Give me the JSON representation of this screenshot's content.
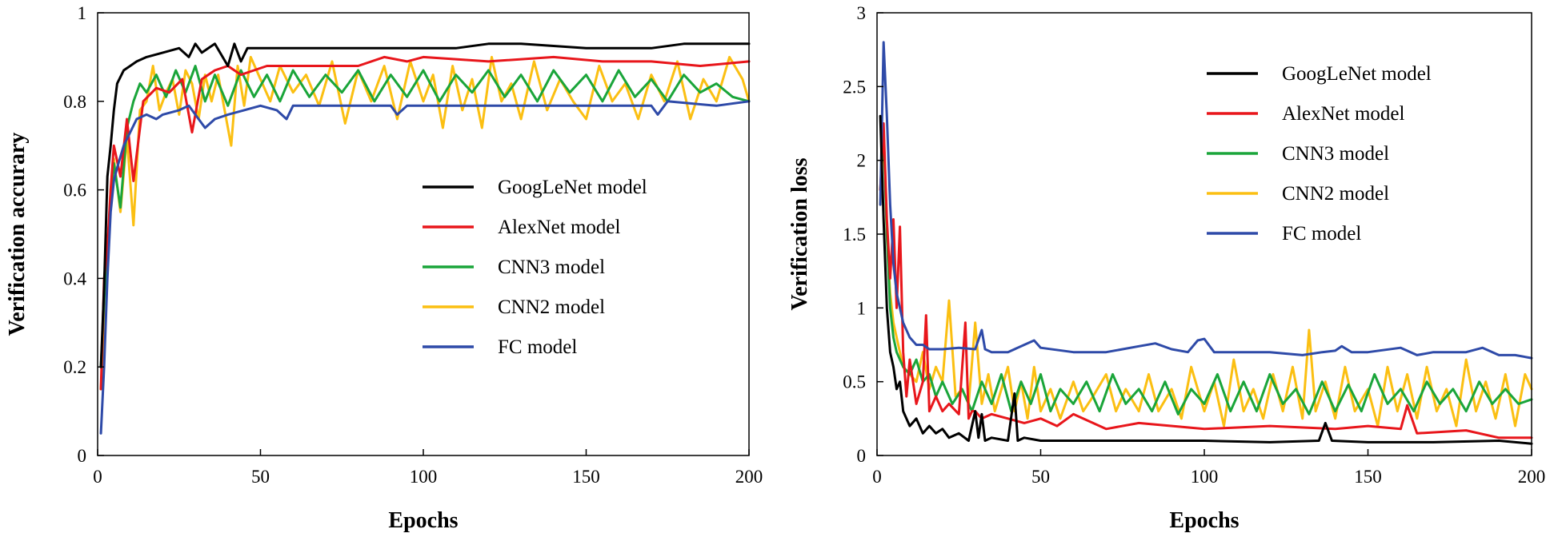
{
  "colors": {
    "GoogLeNet model": "#000000",
    "AlexNet model": "#e8161b",
    "CNN3 model": "#1aa53a",
    "CNN2 model": "#fbbf12",
    "FC model": "#2e4aa8"
  },
  "chart_data": [
    {
      "id": "accuracy",
      "type": "line",
      "xlabel": "Epochs",
      "ylabel": "Verification accurary",
      "xlim": [
        0,
        200
      ],
      "ylim": [
        0,
        1
      ],
      "xticks": [
        0,
        50,
        100,
        150,
        200
      ],
      "yticks": [
        0,
        0.2,
        0.4,
        0.6,
        0.8,
        1
      ],
      "ytick_labels": [
        "0",
        "0.2",
        "0.4",
        "0.6",
        "0.8",
        "1"
      ],
      "legend_loc": "center-right",
      "series": [
        {
          "name": "GoogLeNet model",
          "x": [
            1,
            2,
            3,
            4,
            5,
            6,
            8,
            10,
            12,
            15,
            20,
            25,
            28,
            30,
            32,
            34,
            36,
            40,
            42,
            44,
            46,
            50,
            60,
            80,
            100,
            110,
            120,
            130,
            150,
            170,
            180,
            200
          ],
          "y": [
            0.2,
            0.38,
            0.63,
            0.7,
            0.78,
            0.84,
            0.87,
            0.88,
            0.89,
            0.9,
            0.91,
            0.92,
            0.9,
            0.93,
            0.91,
            0.92,
            0.93,
            0.88,
            0.93,
            0.89,
            0.92,
            0.92,
            0.92,
            0.92,
            0.92,
            0.92,
            0.93,
            0.93,
            0.92,
            0.92,
            0.93,
            0.93
          ]
        },
        {
          "name": "AlexNet model",
          "x": [
            1,
            2,
            3,
            4,
            5,
            7,
            9,
            11,
            14,
            18,
            22,
            26,
            29,
            32,
            36,
            40,
            44,
            48,
            52,
            60,
            70,
            80,
            88,
            95,
            100,
            120,
            140,
            155,
            170,
            185,
            200
          ],
          "y": [
            0.15,
            0.4,
            0.47,
            0.6,
            0.7,
            0.63,
            0.76,
            0.62,
            0.8,
            0.83,
            0.82,
            0.85,
            0.73,
            0.85,
            0.87,
            0.88,
            0.86,
            0.87,
            0.88,
            0.88,
            0.88,
            0.88,
            0.9,
            0.89,
            0.9,
            0.89,
            0.9,
            0.89,
            0.89,
            0.88,
            0.89
          ]
        },
        {
          "name": "CNN3 model",
          "x": [
            1,
            2,
            3,
            4,
            5,
            7,
            9,
            11,
            13,
            15,
            18,
            21,
            24,
            27,
            30,
            33,
            36,
            40,
            44,
            48,
            52,
            56,
            60,
            65,
            70,
            75,
            80,
            85,
            90,
            95,
            100,
            105,
            110,
            115,
            120,
            125,
            130,
            135,
            140,
            145,
            150,
            155,
            160,
            165,
            170,
            175,
            180,
            185,
            190,
            195,
            200
          ],
          "y": [
            0.2,
            0.35,
            0.47,
            0.58,
            0.66,
            0.56,
            0.74,
            0.8,
            0.84,
            0.82,
            0.86,
            0.81,
            0.87,
            0.82,
            0.88,
            0.8,
            0.86,
            0.79,
            0.87,
            0.81,
            0.86,
            0.8,
            0.87,
            0.81,
            0.86,
            0.82,
            0.87,
            0.8,
            0.86,
            0.81,
            0.87,
            0.8,
            0.86,
            0.82,
            0.87,
            0.81,
            0.86,
            0.8,
            0.87,
            0.82,
            0.86,
            0.8,
            0.87,
            0.81,
            0.85,
            0.8,
            0.86,
            0.82,
            0.84,
            0.81,
            0.8
          ]
        },
        {
          "name": "CNN2 model",
          "x": [
            1,
            2,
            3,
            4,
            5,
            7,
            9,
            11,
            13,
            15,
            17,
            19,
            21,
            23,
            25,
            27,
            29,
            31,
            33,
            35,
            37,
            39,
            41,
            43,
            45,
            47,
            50,
            53,
            56,
            60,
            64,
            68,
            72,
            76,
            80,
            84,
            88,
            92,
            96,
            100,
            103,
            106,
            109,
            112,
            115,
            118,
            121,
            124,
            127,
            130,
            134,
            138,
            142,
            146,
            150,
            154,
            158,
            162,
            166,
            170,
            174,
            178,
            182,
            186,
            190,
            194,
            198,
            200
          ],
          "y": [
            0.15,
            0.3,
            0.45,
            0.6,
            0.67,
            0.55,
            0.72,
            0.52,
            0.78,
            0.8,
            0.88,
            0.78,
            0.82,
            0.85,
            0.77,
            0.87,
            0.84,
            0.76,
            0.86,
            0.8,
            0.86,
            0.78,
            0.7,
            0.88,
            0.79,
            0.9,
            0.85,
            0.8,
            0.88,
            0.82,
            0.86,
            0.79,
            0.89,
            0.75,
            0.87,
            0.8,
            0.88,
            0.76,
            0.89,
            0.8,
            0.86,
            0.74,
            0.88,
            0.78,
            0.85,
            0.74,
            0.9,
            0.8,
            0.84,
            0.76,
            0.89,
            0.78,
            0.85,
            0.8,
            0.76,
            0.88,
            0.8,
            0.84,
            0.76,
            0.86,
            0.8,
            0.89,
            0.76,
            0.85,
            0.8,
            0.9,
            0.85,
            0.8
          ]
        },
        {
          "name": "FC model",
          "x": [
            1,
            2,
            3,
            4,
            5,
            6,
            8,
            10,
            12,
            15,
            18,
            20,
            25,
            28,
            30,
            33,
            36,
            40,
            45,
            50,
            55,
            58,
            60,
            70,
            80,
            90,
            92,
            95,
            100,
            120,
            140,
            160,
            170,
            172,
            175,
            190,
            200
          ],
          "y": [
            0.05,
            0.2,
            0.4,
            0.55,
            0.62,
            0.65,
            0.7,
            0.73,
            0.76,
            0.77,
            0.76,
            0.77,
            0.78,
            0.79,
            0.77,
            0.74,
            0.76,
            0.77,
            0.78,
            0.79,
            0.78,
            0.76,
            0.79,
            0.79,
            0.79,
            0.79,
            0.77,
            0.79,
            0.79,
            0.79,
            0.79,
            0.79,
            0.79,
            0.77,
            0.8,
            0.79,
            0.8
          ]
        }
      ]
    },
    {
      "id": "loss",
      "type": "line",
      "xlabel": "Epochs",
      "ylabel": "Verification loss",
      "xlim": [
        0,
        200
      ],
      "ylim": [
        0,
        3
      ],
      "xticks": [
        0,
        50,
        100,
        150,
        200
      ],
      "yticks": [
        0,
        0.5,
        1,
        1.5,
        2,
        2.5,
        3
      ],
      "ytick_labels": [
        "0",
        "0.5",
        "1",
        "1.5",
        "2",
        "2.5",
        "3"
      ],
      "legend_loc": "top-right",
      "series": [
        {
          "name": "GoogLeNet model",
          "x": [
            1,
            2,
            3,
            4,
            5,
            6,
            7,
            8,
            10,
            12,
            14,
            16,
            18,
            20,
            22,
            25,
            28,
            30,
            31,
            32,
            33,
            35,
            40,
            42,
            43,
            45,
            50,
            60,
            80,
            100,
            120,
            135,
            137,
            139,
            150,
            170,
            190,
            200
          ],
          "y": [
            2.3,
            1.6,
            1.0,
            0.7,
            0.6,
            0.45,
            0.5,
            0.3,
            0.2,
            0.25,
            0.15,
            0.2,
            0.15,
            0.18,
            0.12,
            0.15,
            0.1,
            0.3,
            0.12,
            0.28,
            0.1,
            0.12,
            0.1,
            0.42,
            0.1,
            0.12,
            0.1,
            0.1,
            0.1,
            0.1,
            0.09,
            0.1,
            0.22,
            0.1,
            0.09,
            0.09,
            0.1,
            0.08
          ]
        },
        {
          "name": "AlexNet model",
          "x": [
            1,
            2,
            3,
            4,
            5,
            6,
            7,
            8,
            9,
            10,
            12,
            14,
            15,
            16,
            18,
            20,
            22,
            25,
            27,
            28,
            29,
            30,
            32,
            35,
            40,
            45,
            50,
            55,
            60,
            70,
            80,
            100,
            120,
            140,
            150,
            160,
            162,
            165,
            180,
            190,
            200
          ],
          "y": [
            1.8,
            2.25,
            1.6,
            1.2,
            1.6,
            1.0,
            1.55,
            0.7,
            0.4,
            0.65,
            0.35,
            0.5,
            0.95,
            0.3,
            0.4,
            0.3,
            0.35,
            0.28,
            0.9,
            0.25,
            0.3,
            0.3,
            0.25,
            0.28,
            0.25,
            0.22,
            0.25,
            0.2,
            0.28,
            0.18,
            0.22,
            0.18,
            0.2,
            0.18,
            0.2,
            0.18,
            0.34,
            0.15,
            0.17,
            0.12,
            0.12
          ]
        },
        {
          "name": "CNN3 model",
          "x": [
            1,
            2,
            3,
            4,
            5,
            6,
            8,
            10,
            12,
            14,
            16,
            18,
            20,
            23,
            26,
            29,
            32,
            35,
            38,
            41,
            44,
            47,
            50,
            53,
            56,
            60,
            64,
            68,
            72,
            76,
            80,
            84,
            88,
            92,
            96,
            100,
            104,
            108,
            112,
            116,
            120,
            124,
            128,
            132,
            136,
            140,
            144,
            148,
            152,
            156,
            160,
            164,
            168,
            172,
            176,
            180,
            184,
            188,
            192,
            196,
            200
          ],
          "y": [
            1.8,
            2.2,
            1.5,
            1.0,
            0.8,
            0.7,
            0.6,
            0.55,
            0.65,
            0.5,
            0.55,
            0.4,
            0.5,
            0.35,
            0.45,
            0.3,
            0.5,
            0.35,
            0.55,
            0.3,
            0.5,
            0.35,
            0.55,
            0.3,
            0.45,
            0.35,
            0.5,
            0.3,
            0.55,
            0.35,
            0.45,
            0.3,
            0.5,
            0.28,
            0.45,
            0.35,
            0.55,
            0.3,
            0.5,
            0.3,
            0.55,
            0.35,
            0.45,
            0.28,
            0.5,
            0.3,
            0.48,
            0.3,
            0.55,
            0.35,
            0.45,
            0.3,
            0.5,
            0.35,
            0.45,
            0.3,
            0.5,
            0.35,
            0.45,
            0.35,
            0.38
          ]
        },
        {
          "name": "CNN2 model",
          "x": [
            1,
            2,
            3,
            4,
            5,
            6,
            8,
            10,
            12,
            14,
            16,
            18,
            20,
            22,
            24,
            26,
            28,
            30,
            32,
            34,
            36,
            38,
            40,
            42,
            44,
            46,
            48,
            50,
            53,
            56,
            60,
            63,
            66,
            70,
            73,
            76,
            80,
            83,
            86,
            90,
            93,
            96,
            100,
            103,
            106,
            109,
            112,
            115,
            118,
            121,
            124,
            127,
            130,
            132,
            134,
            137,
            140,
            143,
            146,
            150,
            153,
            156,
            159,
            162,
            165,
            168,
            171,
            174,
            177,
            180,
            183,
            186,
            189,
            192,
            195,
            198,
            200
          ],
          "y": [
            1.7,
            2.2,
            1.5,
            1.1,
            0.9,
            0.8,
            0.6,
            0.55,
            0.5,
            0.7,
            0.45,
            0.6,
            0.5,
            1.05,
            0.4,
            0.45,
            0.35,
            0.9,
            0.35,
            0.55,
            0.3,
            0.45,
            0.6,
            0.3,
            0.5,
            0.25,
            0.6,
            0.3,
            0.45,
            0.25,
            0.5,
            0.3,
            0.4,
            0.55,
            0.3,
            0.45,
            0.3,
            0.55,
            0.3,
            0.45,
            0.25,
            0.6,
            0.3,
            0.5,
            0.2,
            0.65,
            0.3,
            0.45,
            0.25,
            0.55,
            0.3,
            0.6,
            0.25,
            0.85,
            0.3,
            0.5,
            0.25,
            0.6,
            0.3,
            0.45,
            0.2,
            0.6,
            0.3,
            0.55,
            0.25,
            0.6,
            0.3,
            0.45,
            0.2,
            0.65,
            0.3,
            0.5,
            0.25,
            0.55,
            0.2,
            0.55,
            0.45
          ]
        },
        {
          "name": "FC model",
          "x": [
            1,
            2,
            3,
            4,
            5,
            6,
            8,
            10,
            12,
            14,
            16,
            18,
            20,
            25,
            30,
            32,
            33,
            35,
            40,
            45,
            48,
            50,
            60,
            70,
            80,
            85,
            90,
            95,
            98,
            100,
            103,
            110,
            120,
            130,
            136,
            140,
            142,
            145,
            150,
            160,
            165,
            170,
            180,
            185,
            190,
            195,
            200
          ],
          "y": [
            1.7,
            2.8,
            2.3,
            1.7,
            1.3,
            1.1,
            0.9,
            0.8,
            0.75,
            0.75,
            0.72,
            0.72,
            0.72,
            0.73,
            0.72,
            0.85,
            0.72,
            0.7,
            0.7,
            0.75,
            0.78,
            0.73,
            0.7,
            0.7,
            0.74,
            0.76,
            0.72,
            0.7,
            0.78,
            0.79,
            0.7,
            0.7,
            0.7,
            0.68,
            0.7,
            0.71,
            0.74,
            0.7,
            0.7,
            0.73,
            0.68,
            0.7,
            0.7,
            0.73,
            0.68,
            0.68,
            0.66
          ]
        }
      ]
    }
  ]
}
